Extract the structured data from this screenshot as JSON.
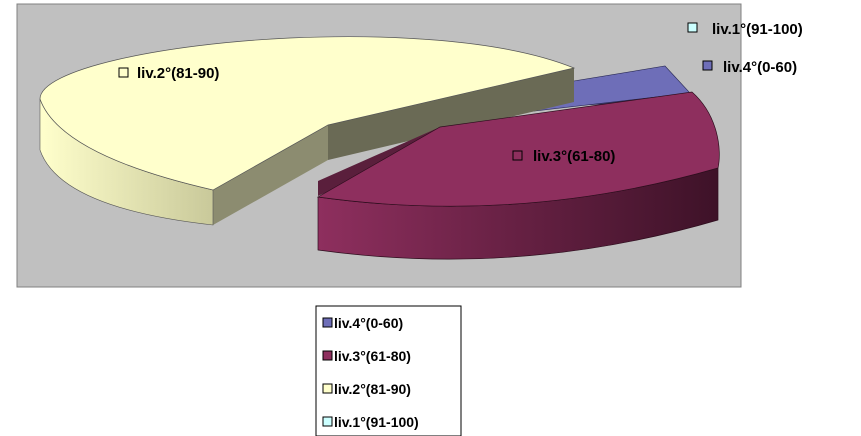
{
  "chart_data": {
    "type": "pie",
    "style": "3d-exploded",
    "title": "",
    "categories": [
      "liv.4°(0-60)",
      "liv.3°(61-80)",
      "liv.2°(81-90)",
      "liv.1°(91-100)"
    ],
    "values": [
      3,
      40,
      57,
      0
    ],
    "colors": [
      "#6E6EB8",
      "#8E2F5E",
      "#FFFFCC",
      "#CCFFFF"
    ],
    "data_labels": [
      "liv.4°(0-60)",
      "liv.3°(61-80)",
      "liv.2°(81-90)",
      "liv.1°(91-100)"
    ],
    "legend": {
      "position": "bottom",
      "entries": [
        "liv.4°(0-60)",
        "liv.3°(61-80)",
        "liv.2°(81-90)",
        "liv.1°(91-100)"
      ]
    },
    "plot_area_color": "#C0C0C0"
  }
}
